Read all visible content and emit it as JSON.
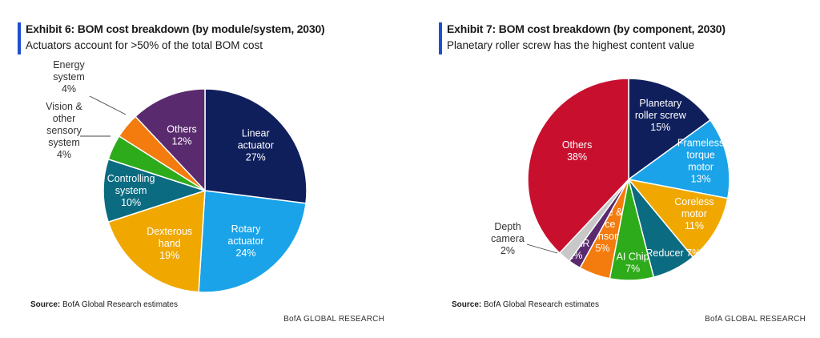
{
  "brand_text": "BofA GLOBAL RESEARCH",
  "source_label": "Source:",
  "source_text": "BofA Global Research estimates",
  "chart_data": [
    {
      "type": "pie",
      "title": "Exhibit 6: BOM cost breakdown (by module/system, 2030)",
      "subtitle": "Actuators account for >50% of the total BOM cost",
      "slices": [
        {
          "label": [
            "Linear",
            "actuator"
          ],
          "value": 27,
          "pct": "27%",
          "color": "#0f1f5c",
          "label_color": "#ffffff",
          "label_pos": "inside"
        },
        {
          "label": [
            "Rotary",
            "actuator"
          ],
          "value": 24,
          "pct": "24%",
          "color": "#1aa3e8",
          "label_color": "#ffffff",
          "label_pos": "inside"
        },
        {
          "label": [
            "Dexterous",
            "hand"
          ],
          "value": 19,
          "pct": "19%",
          "color": "#f0a800",
          "label_color": "#ffffff",
          "label_pos": "inside"
        },
        {
          "label": [
            "Controlling",
            "system"
          ],
          "value": 10,
          "pct": "10%",
          "color": "#0b6b80",
          "label_color": "#ffffff",
          "label_pos": "inside"
        },
        {
          "label": [
            "Vision &",
            "other",
            "sensory",
            "system"
          ],
          "value": 4,
          "pct": "4%",
          "color": "#2eab1a",
          "label_color": "#333333",
          "label_pos": "outside"
        },
        {
          "label": [
            "Energy",
            "system"
          ],
          "value": 4,
          "pct": "4%",
          "color": "#f47b0e",
          "label_color": "#333333",
          "label_pos": "outside"
        },
        {
          "label": [
            "Others"
          ],
          "value": 12,
          "pct": "12%",
          "color": "#5a2a6e",
          "label_color": "#ffffff",
          "label_pos": "inside"
        }
      ]
    },
    {
      "type": "pie",
      "title": "Exhibit 7: BOM cost breakdown (by component, 2030)",
      "subtitle": "Planetary roller screw has the highest content value",
      "slices": [
        {
          "label": [
            "Planetary",
            "roller screw"
          ],
          "value": 15,
          "pct": "15%",
          "color": "#0f1f5c",
          "label_color": "#ffffff",
          "label_pos": "inside"
        },
        {
          "label": [
            "Frameless",
            "torque",
            "motor"
          ],
          "value": 13,
          "pct": "13%",
          "color": "#1aa3e8",
          "label_color": "#ffffff",
          "label_pos": "inside"
        },
        {
          "label": [
            "Coreless",
            "motor"
          ],
          "value": 11,
          "pct": "11%",
          "color": "#f0a800",
          "label_color": "#ffffff",
          "label_pos": "inside"
        },
        {
          "label": [
            "Reducer"
          ],
          "value": 7,
          "pct": "7%",
          "color": "#0b6b80",
          "label_color": "#ffffff",
          "label_pos": "inside",
          "inline": true
        },
        {
          "label": [
            "AI Chip"
          ],
          "value": 7,
          "pct": "7%",
          "color": "#2eab1a",
          "label_color": "#ffffff",
          "label_pos": "inside"
        },
        {
          "label": [
            "Torque &",
            "Force",
            "sensor"
          ],
          "value": 5,
          "pct": "5%",
          "color": "#f47b0e",
          "label_color": "#ffffff",
          "label_pos": "inside"
        },
        {
          "label": [
            "LiDAR"
          ],
          "value": 2,
          "pct": "2%",
          "color": "#5a2a6e",
          "label_color": "#ffffff",
          "label_pos": "inside"
        },
        {
          "label": [
            "Depth",
            "camera"
          ],
          "value": 2,
          "pct": "2%",
          "color": "#c8c8c8",
          "label_color": "#333333",
          "label_pos": "outside"
        },
        {
          "label": [
            "Others"
          ],
          "value": 38,
          "pct": "38%",
          "color": "#c8102e",
          "label_color": "#ffffff",
          "label_pos": "inside"
        }
      ]
    }
  ]
}
